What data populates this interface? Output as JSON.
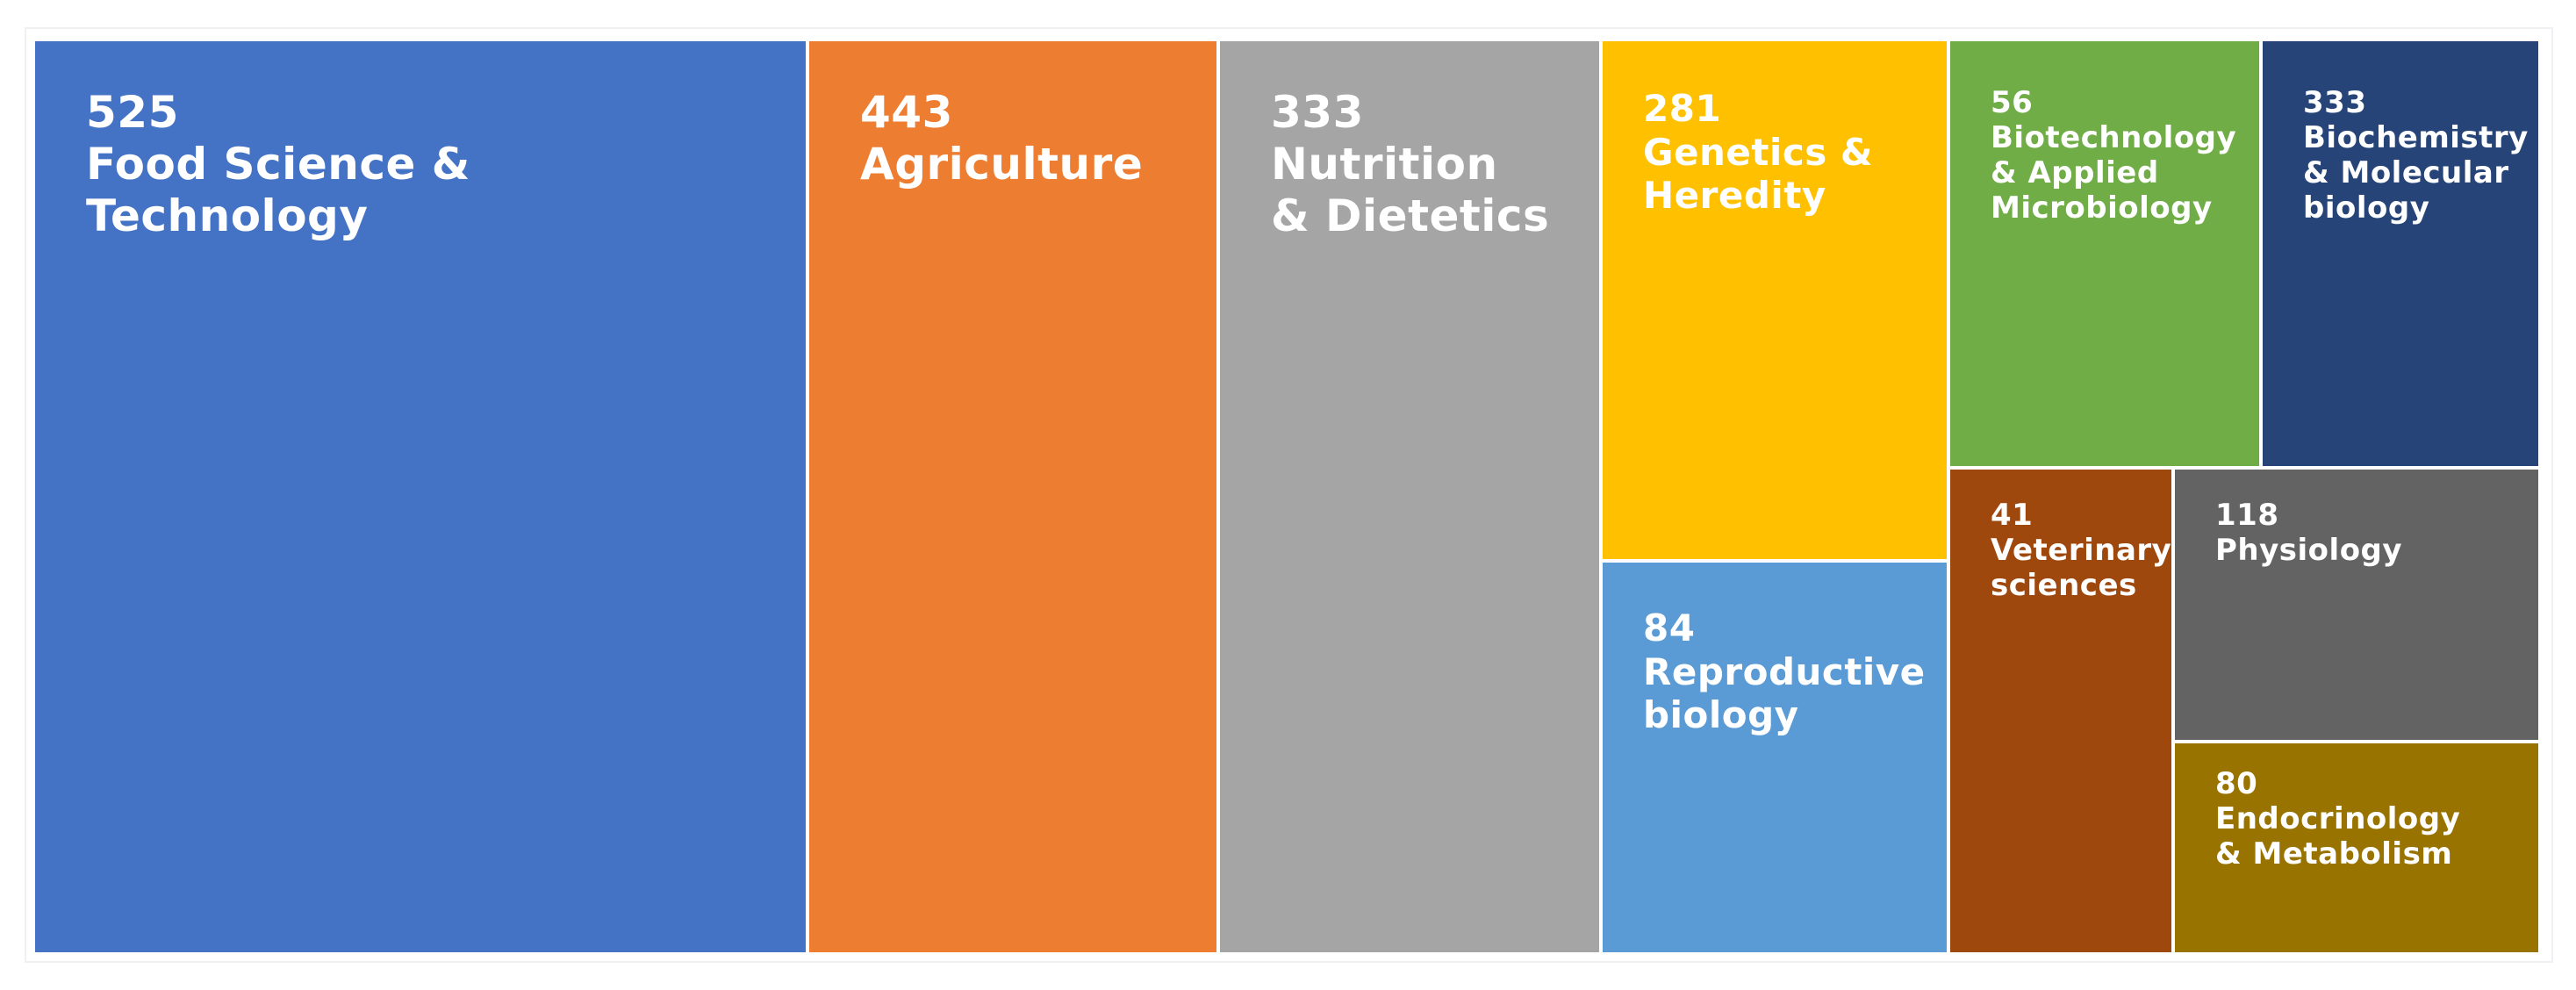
{
  "chart_data": {
    "type": "treemap",
    "title": "",
    "items": [
      {
        "value": 525,
        "label": "Food Science &\nTechnology",
        "color": "#4472c4"
      },
      {
        "value": 443,
        "label": "Agriculture",
        "color": "#ed7d31"
      },
      {
        "value": 333,
        "label": "Nutrition\n& Dietetics",
        "color": "#a5a5a5"
      },
      {
        "value": 281,
        "label": "Genetics &\nHeredity",
        "color": "#ffc000"
      },
      {
        "value": 84,
        "label": "Reproductive\nbiology",
        "color": "#5b9bd5"
      },
      {
        "value": 56,
        "label": "Biotechnology\n& Applied\nMicrobiology",
        "color": "#70ad47"
      },
      {
        "value": 333,
        "label": "Biochemistry\n& Molecular\nbiology",
        "color": "#264478"
      },
      {
        "value": 41,
        "label": "Veterinary\nsciences",
        "color": "#9e480e"
      },
      {
        "value": 118,
        "label": "Physiology",
        "color": "#636363"
      },
      {
        "value": 80,
        "label": "Endocrinology\n& Metabolism",
        "color": "#997300"
      }
    ]
  }
}
